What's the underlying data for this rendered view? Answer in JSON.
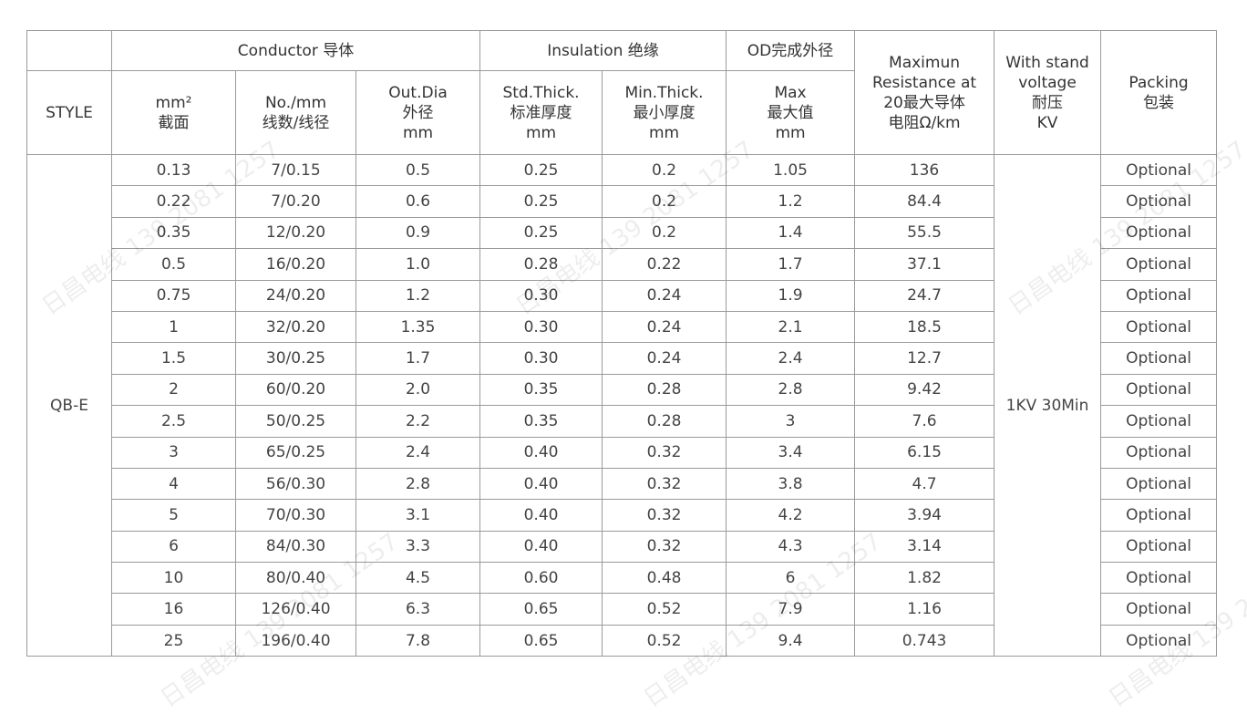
{
  "headers": {
    "style": "STYLE",
    "conductor": "Conductor 导体",
    "insulation": "Insulation 绝缘",
    "od": "OD完成外径",
    "resistance": [
      "Maximun",
      "Resistance at",
      "20最大导体",
      "电阻Ω/km"
    ],
    "voltage": [
      "With stand",
      "voltage",
      "耐压",
      "KV"
    ],
    "packing": [
      "Packing",
      "包装"
    ],
    "area": [
      "mm²",
      "截面"
    ],
    "strands": [
      "No./mm",
      "线数/线径"
    ],
    "outdia": [
      "Out.Dia",
      "外径",
      "mm"
    ],
    "std_thick": [
      "Std.Thick.",
      "标准厚度",
      "mm"
    ],
    "min_thick": [
      "Min.Thick.",
      "最小厚度",
      "mm"
    ],
    "od_max": [
      "Max",
      "最大值",
      "mm"
    ]
  },
  "style_value": "QB-E",
  "voltage_value": "1KV 30Min",
  "rows": [
    [
      "0.13",
      "7/0.15",
      "0.5",
      "0.25",
      "0.2",
      "1.05",
      "136",
      "Optional"
    ],
    [
      "0.22",
      "7/0.20",
      "0.6",
      "0.25",
      "0.2",
      "1.2",
      "84.4",
      "Optional"
    ],
    [
      "0.35",
      "12/0.20",
      "0.9",
      "0.25",
      "0.2",
      "1.4",
      "55.5",
      "Optional"
    ],
    [
      "0.5",
      "16/0.20",
      "1.0",
      "0.28",
      "0.22",
      "1.7",
      "37.1",
      "Optional"
    ],
    [
      "0.75",
      "24/0.20",
      "1.2",
      "0.30",
      "0.24",
      "1.9",
      "24.7",
      "Optional"
    ],
    [
      "1",
      "32/0.20",
      "1.35",
      "0.30",
      "0.24",
      "2.1",
      "18.5",
      "Optional"
    ],
    [
      "1.5",
      "30/0.25",
      "1.7",
      "0.30",
      "0.24",
      "2.4",
      "12.7",
      "Optional"
    ],
    [
      "2",
      "60/0.20",
      "2.0",
      "0.35",
      "0.28",
      "2.8",
      "9.42",
      "Optional"
    ],
    [
      "2.5",
      "50/0.25",
      "2.2",
      "0.35",
      "0.28",
      "3",
      "7.6",
      "Optional"
    ],
    [
      "3",
      "65/0.25",
      "2.4",
      "0.40",
      "0.32",
      "3.4",
      "6.15",
      "Optional"
    ],
    [
      "4",
      "56/0.30",
      "2.8",
      "0.40",
      "0.32",
      "3.8",
      "4.7",
      "Optional"
    ],
    [
      "5",
      "70/0.30",
      "3.1",
      "0.40",
      "0.32",
      "4.2",
      "3.94",
      "Optional"
    ],
    [
      "6",
      "84/0.30",
      "3.3",
      "0.40",
      "0.32",
      "4.3",
      "3.14",
      "Optional"
    ],
    [
      "10",
      "80/0.40",
      "4.5",
      "0.60",
      "0.48",
      "6",
      "1.82",
      "Optional"
    ],
    [
      "16",
      "126/0.40",
      "6.3",
      "0.65",
      "0.52",
      "7.9",
      "1.16",
      "Optional"
    ],
    [
      "25",
      "196/0.40",
      "7.8",
      "0.65",
      "0.52",
      "9.4",
      "0.743",
      "Optional"
    ]
  ],
  "watermark": "日昌电线 139 2081 1257"
}
